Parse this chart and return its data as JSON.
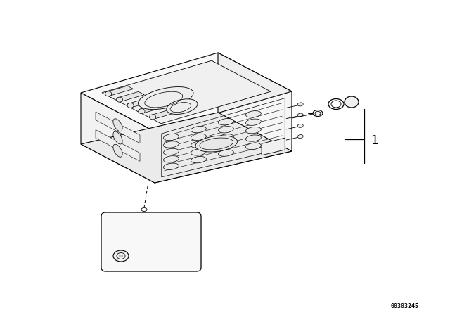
{
  "bg_color": "#ffffff",
  "line_color": "#000000",
  "part_number_label": "1",
  "diagram_code": "00303245",
  "fig_width": 6.4,
  "fig_height": 4.48,
  "dpi": 100
}
